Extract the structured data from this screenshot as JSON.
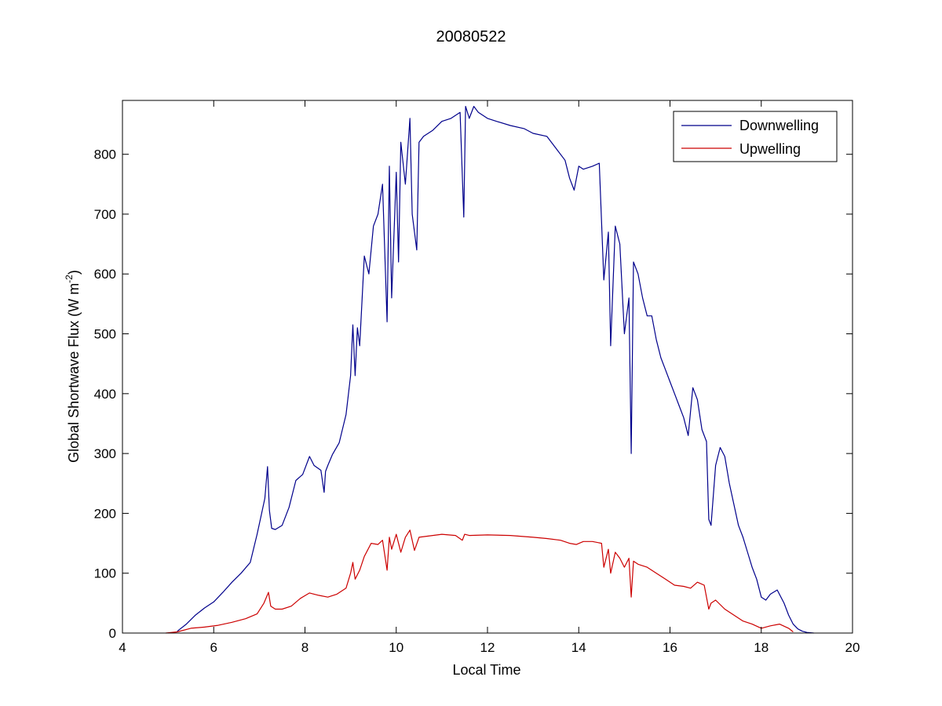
{
  "chart_data": {
    "type": "line",
    "title": "20080522",
    "xlabel": "Local Time",
    "ylabel": "Global Shortwave Flux (W m",
    "ylabel_sup": "-2",
    "ylabel_close": ")",
    "xlim": [
      4,
      20
    ],
    "ylim": [
      0,
      890
    ],
    "xticks": [
      4,
      6,
      8,
      10,
      12,
      14,
      16,
      18,
      20
    ],
    "yticks": [
      0,
      100,
      200,
      300,
      400,
      500,
      600,
      700,
      800
    ],
    "grid": false,
    "legend_position": "top-right",
    "series": [
      {
        "name": "Downwelling",
        "color": "#00008b",
        "x": [
          5.2,
          5.4,
          5.6,
          5.8,
          6.0,
          6.2,
          6.4,
          6.6,
          6.8,
          6.95,
          7.05,
          7.12,
          7.18,
          7.22,
          7.27,
          7.35,
          7.5,
          7.65,
          7.8,
          7.95,
          8.1,
          8.2,
          8.35,
          8.42,
          8.45,
          8.5,
          8.6,
          8.75,
          8.9,
          9.0,
          9.05,
          9.1,
          9.15,
          9.2,
          9.3,
          9.4,
          9.5,
          9.6,
          9.7,
          9.8,
          9.85,
          9.9,
          10.0,
          10.05,
          10.1,
          10.2,
          10.3,
          10.35,
          10.45,
          10.5,
          10.6,
          10.8,
          11.0,
          11.2,
          11.4,
          11.48,
          11.52,
          11.6,
          11.7,
          11.8,
          12.0,
          12.2,
          12.5,
          12.8,
          13.0,
          13.3,
          13.5,
          13.7,
          13.8,
          13.9,
          14.0,
          14.1,
          14.3,
          14.45,
          14.55,
          14.65,
          14.7,
          14.8,
          14.9,
          15.0,
          15.1,
          15.15,
          15.2,
          15.3,
          15.4,
          15.5,
          15.6,
          15.7,
          15.8,
          15.9,
          16.0,
          16.1,
          16.2,
          16.3,
          16.4,
          16.5,
          16.6,
          16.7,
          16.8,
          16.85,
          16.9,
          17.0,
          17.1,
          17.2,
          17.3,
          17.4,
          17.5,
          17.6,
          17.7,
          17.8,
          17.9,
          18.0,
          18.1,
          18.2,
          18.35,
          18.5,
          18.6,
          18.7,
          18.8,
          18.9,
          19.0,
          19.15
        ],
        "y": [
          3,
          15,
          30,
          42,
          52,
          68,
          85,
          100,
          118,
          165,
          200,
          225,
          278,
          205,
          175,
          173,
          180,
          210,
          255,
          265,
          295,
          280,
          272,
          235,
          270,
          280,
          298,
          318,
          365,
          430,
          515,
          430,
          510,
          480,
          630,
          600,
          680,
          700,
          750,
          520,
          780,
          560,
          770,
          620,
          820,
          750,
          860,
          700,
          640,
          820,
          830,
          840,
          855,
          860,
          870,
          695,
          880,
          860,
          880,
          870,
          860,
          855,
          848,
          843,
          835,
          830,
          810,
          790,
          760,
          740,
          780,
          775,
          780,
          785,
          590,
          670,
          480,
          680,
          650,
          500,
          560,
          300,
          620,
          600,
          560,
          530,
          530,
          490,
          460,
          440,
          420,
          400,
          380,
          360,
          330,
          410,
          390,
          340,
          320,
          190,
          180,
          280,
          310,
          295,
          250,
          215,
          180,
          160,
          135,
          110,
          90,
          60,
          55,
          65,
          72,
          50,
          30,
          15,
          7,
          3,
          1,
          0
        ]
      },
      {
        "name": "Upwelling",
        "color": "#cc0000",
        "x": [
          4.95,
          5.2,
          5.5,
          5.8,
          6.1,
          6.4,
          6.7,
          6.95,
          7.1,
          7.2,
          7.25,
          7.35,
          7.5,
          7.7,
          7.9,
          8.1,
          8.3,
          8.5,
          8.7,
          8.9,
          9.0,
          9.05,
          9.1,
          9.2,
          9.3,
          9.45,
          9.6,
          9.7,
          9.8,
          9.85,
          9.9,
          10.0,
          10.1,
          10.2,
          10.3,
          10.4,
          10.5,
          10.7,
          11.0,
          11.3,
          11.45,
          11.5,
          11.6,
          12.0,
          12.5,
          13.0,
          13.3,
          13.6,
          13.8,
          13.95,
          14.1,
          14.3,
          14.5,
          14.55,
          14.65,
          14.7,
          14.8,
          14.9,
          15.0,
          15.1,
          15.15,
          15.2,
          15.3,
          15.5,
          15.7,
          15.9,
          16.1,
          16.3,
          16.45,
          16.6,
          16.75,
          16.85,
          16.9,
          17.0,
          17.2,
          17.4,
          17.6,
          17.8,
          18.0,
          18.2,
          18.4,
          18.6,
          18.7
        ],
        "y": [
          0,
          2,
          8,
          10,
          13,
          18,
          24,
          32,
          50,
          68,
          45,
          40,
          40,
          45,
          58,
          67,
          63,
          60,
          65,
          75,
          100,
          118,
          90,
          105,
          128,
          150,
          148,
          155,
          105,
          160,
          140,
          165,
          135,
          160,
          172,
          138,
          160,
          162,
          165,
          163,
          155,
          165,
          163,
          164,
          163,
          160,
          158,
          155,
          150,
          148,
          153,
          153,
          150,
          110,
          140,
          100,
          135,
          125,
          110,
          125,
          60,
          120,
          115,
          110,
          100,
          90,
          80,
          78,
          75,
          85,
          80,
          40,
          50,
          55,
          40,
          30,
          20,
          15,
          8,
          12,
          15,
          8,
          2
        ]
      }
    ]
  }
}
